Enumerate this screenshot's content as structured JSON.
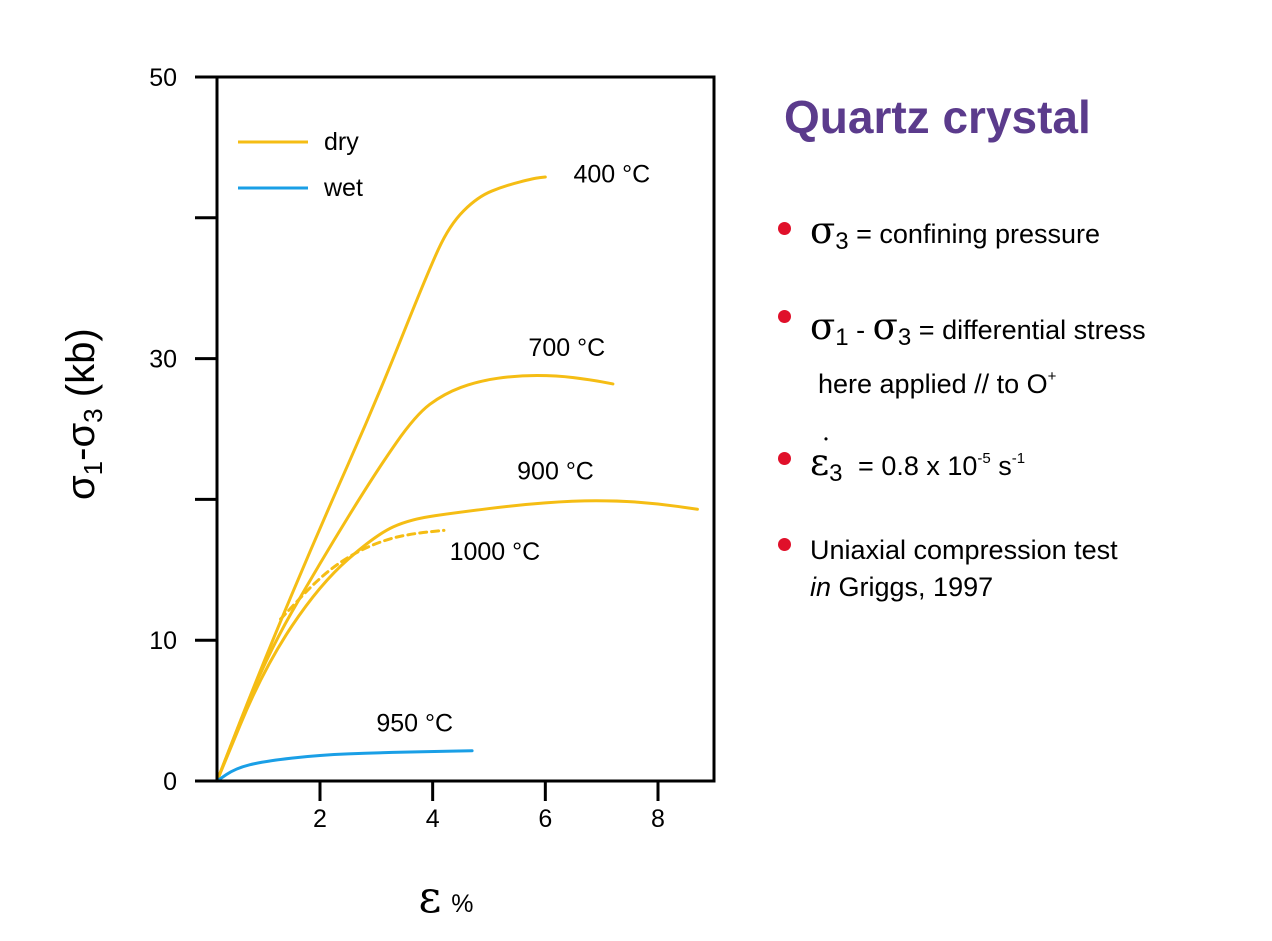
{
  "chart_data": {
    "type": "line",
    "title": "",
    "xlabel": "ε",
    "xlabel_unit": "%",
    "ylabel": "σ1-σ3 (kb)",
    "xlim": [
      0,
      9
    ],
    "ylim": [
      0,
      50
    ],
    "x_ticks": [
      2,
      4,
      6,
      8
    ],
    "y_tick_marks": [
      0,
      10,
      20,
      30,
      40,
      50
    ],
    "y_tick_labels": [
      "0",
      "10",
      "30",
      "50"
    ],
    "legend": {
      "position": "top-left",
      "entries": [
        {
          "label": "dry",
          "color": "#f5bd14"
        },
        {
          "label": "wet",
          "color": "#1a9fe6"
        }
      ]
    },
    "series": [
      {
        "name": "400 °C",
        "condition": "dry",
        "style": "solid",
        "color": "#f5bd14",
        "x": [
          0,
          1,
          2,
          3,
          3.9,
          4.3,
          4.8,
          5.3,
          5.8,
          6.0
        ],
        "y": [
          0,
          8.5,
          18,
          27,
          36,
          39.5,
          41.5,
          42.3,
          42.8,
          42.9
        ]
      },
      {
        "name": "700 °C",
        "condition": "dry",
        "style": "solid",
        "color": "#f5bd14",
        "x": [
          0,
          1,
          2,
          3,
          3.7,
          4.2,
          4.8,
          5.5,
          6.2,
          6.8,
          7.2
        ],
        "y": [
          0,
          8.5,
          15.5,
          22,
          26,
          27.5,
          28.4,
          28.8,
          28.8,
          28.5,
          28.2
        ]
      },
      {
        "name": "900 °C",
        "condition": "dry",
        "style": "solid",
        "color": "#f5bd14",
        "x": [
          0,
          1,
          2,
          3,
          3.6,
          4.5,
          5.5,
          6.5,
          7.3,
          8.0,
          8.7
        ],
        "y": [
          0,
          8,
          14,
          17.5,
          18.6,
          19.1,
          19.6,
          19.9,
          19.9,
          19.7,
          19.3
        ]
      },
      {
        "name": "1000 °C",
        "condition": "dry",
        "style": "dashed",
        "color": "#f5bd14",
        "x": [
          1.3,
          2,
          2.6,
          3.2,
          3.7,
          4.2
        ],
        "y": [
          11.5,
          14.5,
          16.2,
          17.2,
          17.6,
          17.8
        ]
      },
      {
        "name": "950 °C",
        "condition": "wet",
        "style": "solid",
        "color": "#1a9fe6",
        "x": [
          0,
          0.5,
          1,
          2,
          3,
          4,
          4.7
        ],
        "y": [
          0,
          0.9,
          1.4,
          1.85,
          2.0,
          2.1,
          2.15
        ]
      }
    ],
    "annotations": [
      {
        "text": "400 °C",
        "x": 6.5,
        "y": 42.5
      },
      {
        "text": "700 °C",
        "x": 5.7,
        "y": 30.2
      },
      {
        "text": "900 °C",
        "x": 5.5,
        "y": 21.4
      },
      {
        "text": "1000 °C",
        "x": 4.3,
        "y": 15.7
      },
      {
        "text": "950 °C",
        "x": 3.0,
        "y": 3.5
      }
    ]
  },
  "panel": {
    "title": "Quartz crystal",
    "bullet_color": "#e0102a",
    "title_color": "#5b3b8c",
    "items": [
      {
        "symbol": "σ",
        "sub": "3",
        "text": "= confining pressure"
      },
      {
        "symbol_a": "σ",
        "sub_a": "1",
        "dash": "-",
        "symbol_b": "σ",
        "sub_b": "3",
        "text": "= differential stress",
        "cont": "here applied // to O",
        "cont_sup": "+"
      },
      {
        "symbol": "ε",
        "sub": "3",
        "text": "= 0.8 x 10",
        "exp": "-5",
        "unit": "s",
        "unit_exp": "-1"
      },
      {
        "line1": "Uniaxial compression test",
        "line2_em": "in",
        "line2": "Griggs, 1997"
      }
    ]
  }
}
